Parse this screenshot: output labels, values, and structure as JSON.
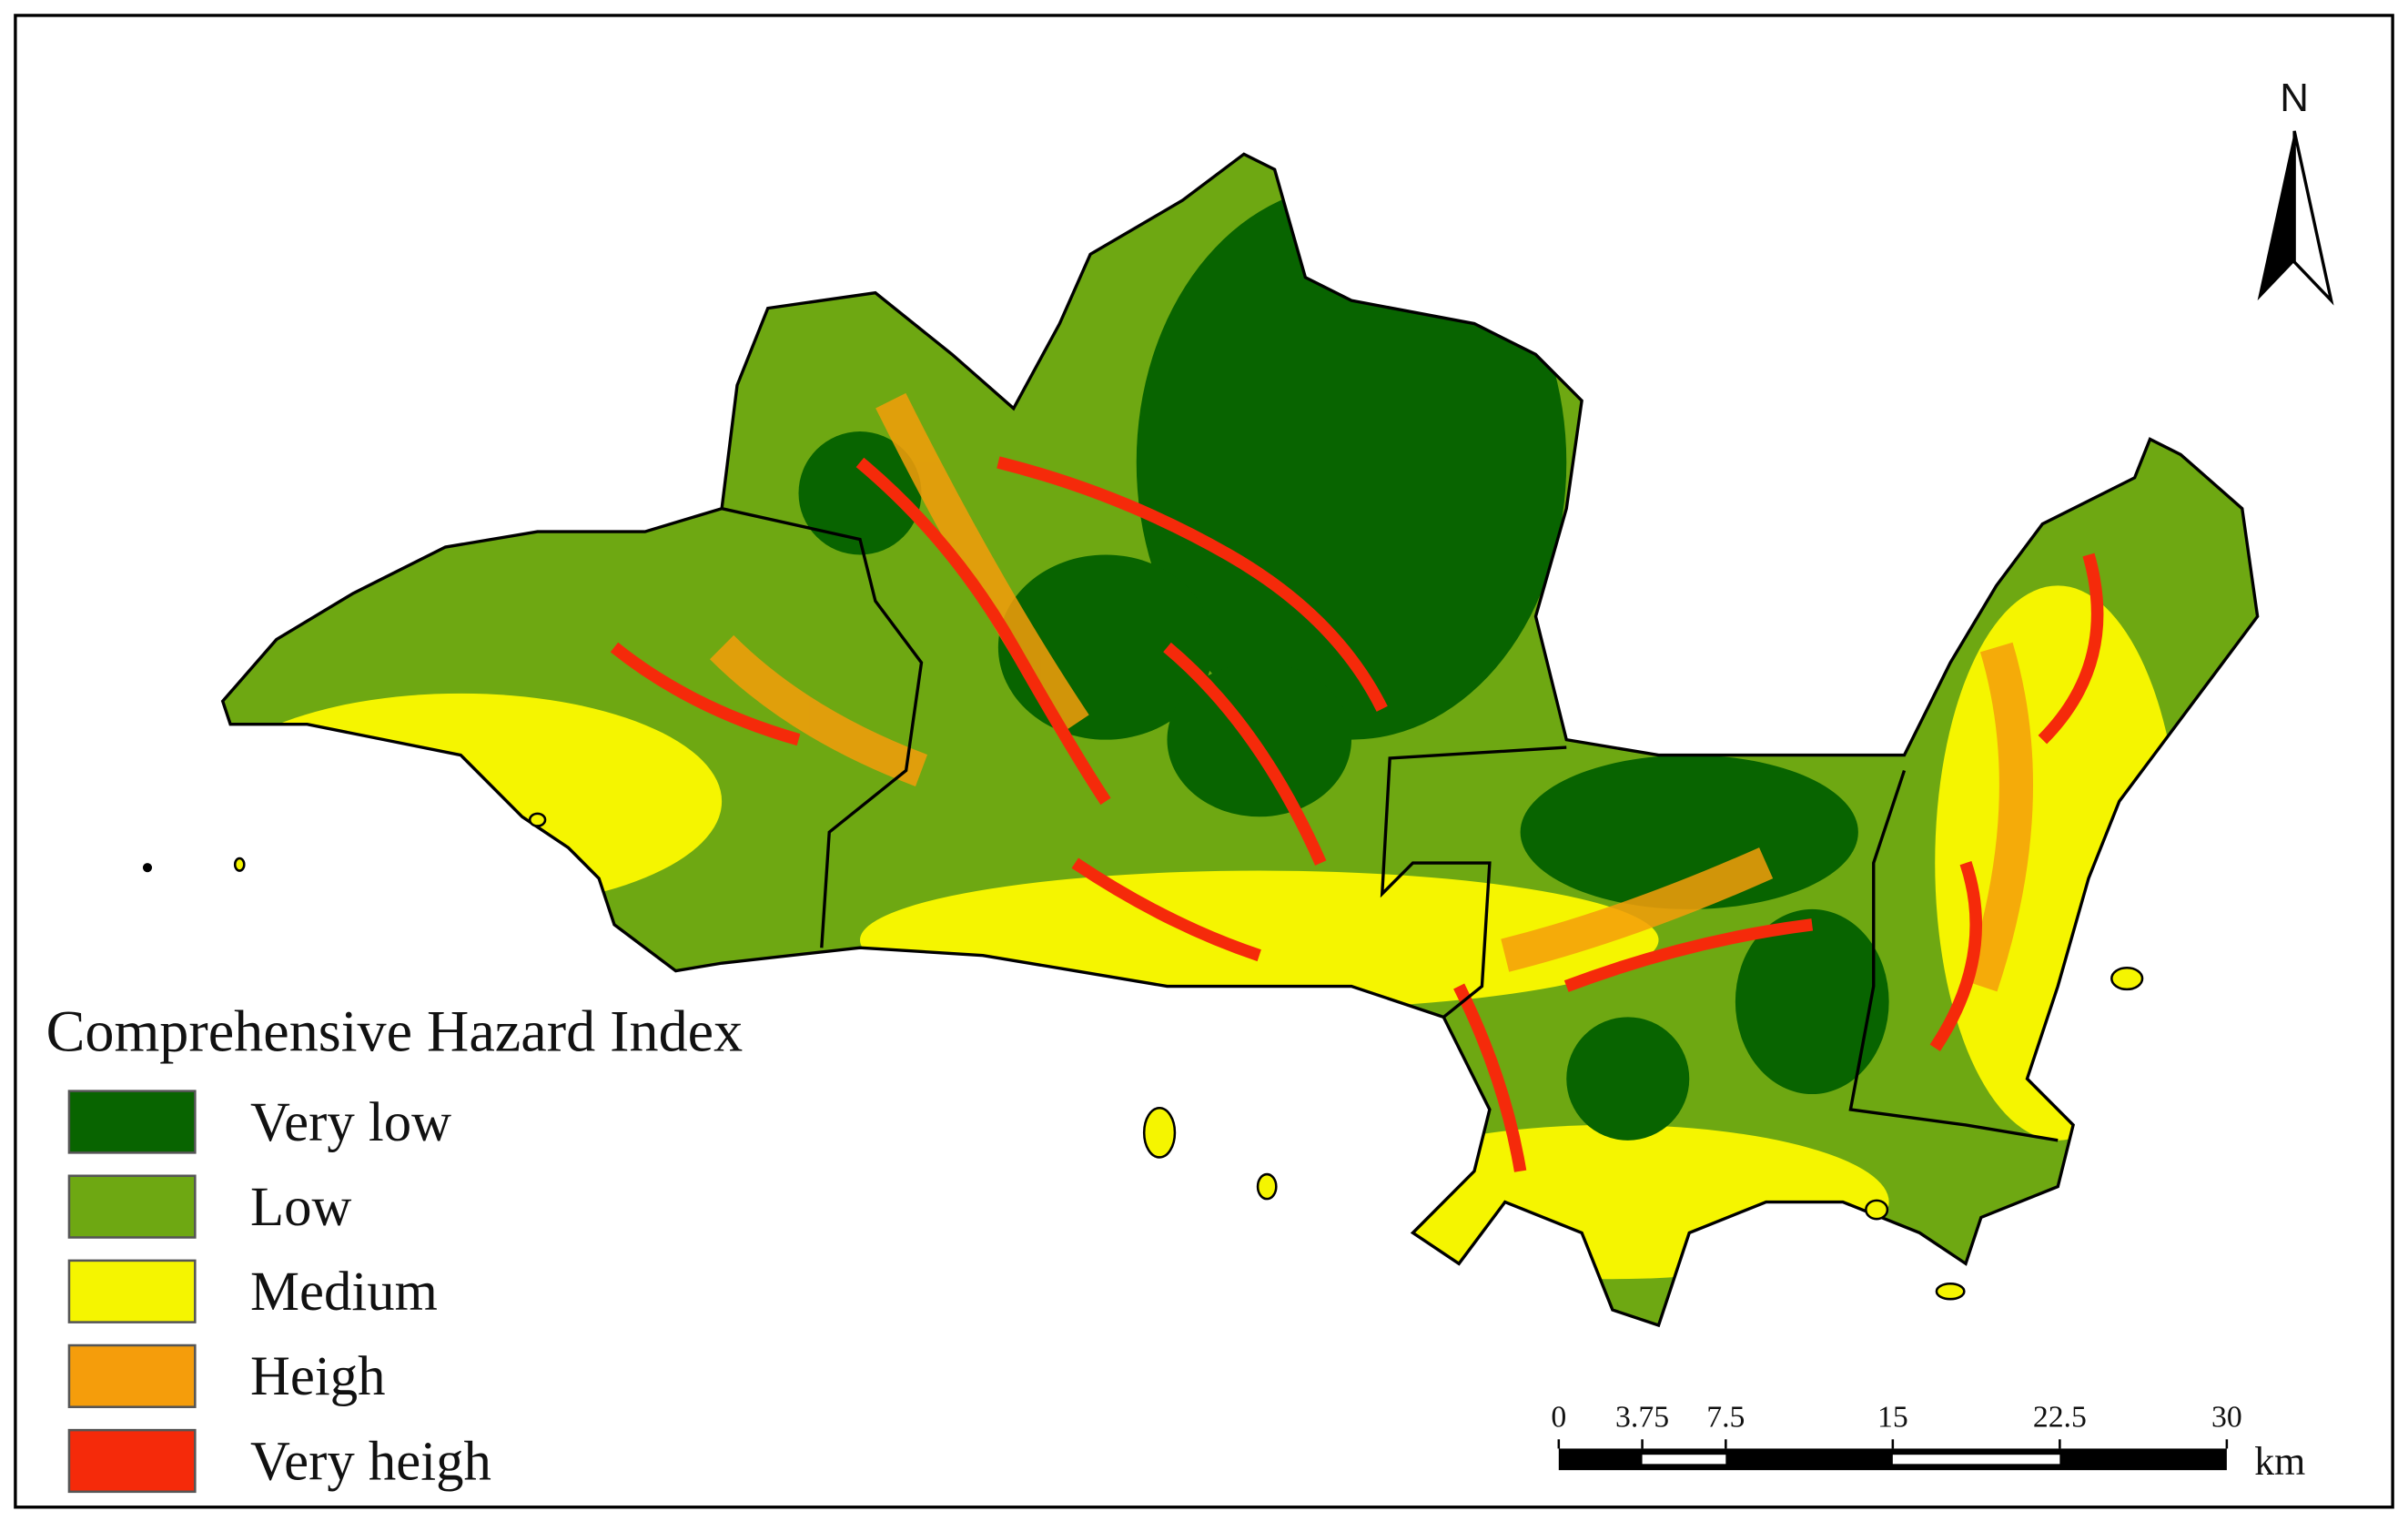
{
  "map": {
    "north_label": "N",
    "legend": {
      "title": "Comprehensive Hazard Index",
      "items": [
        {
          "label": "Very low",
          "color": "#086400"
        },
        {
          "label": "Low",
          "color": "#6ea812"
        },
        {
          "label": "Medium",
          "color": "#f5f500"
        },
        {
          "label": "Heigh",
          "color": "#f59d0b"
        },
        {
          "label": "Very heigh",
          "color": "#f52a0a"
        }
      ]
    },
    "scale_bar": {
      "ticks": [
        0,
        3.75,
        7.5,
        15,
        22.5,
        30
      ],
      "unit": "km"
    }
  }
}
